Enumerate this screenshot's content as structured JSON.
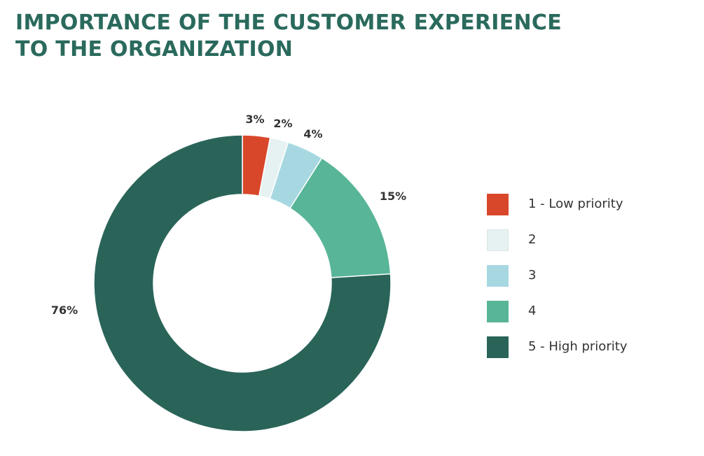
{
  "chart_data": {
    "type": "pie",
    "title_lines": [
      "IMPORTANCE OF THE CUSTOMER EXPERIENCE",
      "TO THE ORGANIZATION"
    ],
    "categories": [
      "1 - Low priority",
      "2",
      "3",
      "4",
      "5 - High priority"
    ],
    "values": [
      3,
      2,
      4,
      15,
      76
    ],
    "labels": [
      "3%",
      "2%",
      "4%",
      "15%",
      "76%"
    ],
    "unit": "%",
    "donut": true,
    "legend_position": "right",
    "colors": [
      "#d9472b",
      "#e6f2f2",
      "#a7d8e2",
      "#58b597",
      "#2a6459"
    ]
  }
}
